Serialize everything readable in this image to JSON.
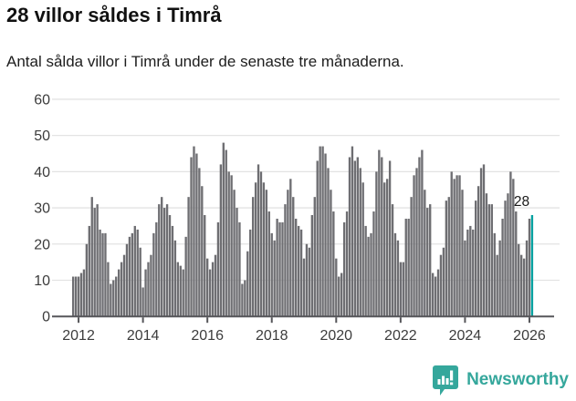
{
  "header": {
    "title": "28 villor såldes i Timrå",
    "subtitle": "Antal sålda villor i Timrå under de senaste tre månaderna."
  },
  "branding": {
    "name": "Newsworthy",
    "icon": "newsworthy-speech-bubble-chart-icon",
    "color": "#35a79c"
  },
  "chart_data": {
    "type": "bar",
    "title": "28 villor såldes i Timrå",
    "subtitle": "Antal sålda villor i Timrå under de senaste tre månaderna.",
    "x_start": "2011-11",
    "x_end": "2026-02",
    "x_tick_labels": [
      "2012",
      "2014",
      "2016",
      "2018",
      "2020",
      "2022",
      "2024",
      "2026"
    ],
    "y_ticks": [
      0,
      10,
      20,
      30,
      40,
      50,
      60
    ],
    "ylim": [
      0,
      60
    ],
    "grid": true,
    "legend": false,
    "bar_color": "#6e6e72",
    "highlight_color": "#00a1a0",
    "axis_text_color": "#3c3c3c",
    "grid_color": "#e3e3e3",
    "axis_line_color": "#56565a",
    "annotation_label": "28",
    "highlight_value": 28,
    "values": [
      11,
      11,
      11,
      12,
      13,
      20,
      25,
      33,
      30,
      31,
      24,
      23,
      23,
      15,
      9,
      10,
      11,
      13,
      15,
      17,
      20,
      22,
      23,
      25,
      24,
      19,
      8,
      13,
      15,
      17,
      23,
      26,
      31,
      33,
      30,
      31,
      28,
      25,
      21,
      15,
      14,
      13,
      22,
      33,
      44,
      47,
      45,
      41,
      36,
      28,
      16,
      13,
      15,
      17,
      26,
      42,
      48,
      46,
      40,
      39,
      35,
      30,
      26,
      9,
      10,
      18,
      24,
      33,
      37,
      42,
      40,
      37,
      35,
      29,
      23,
      21,
      27,
      26,
      26,
      31,
      35,
      38,
      33,
      27,
      25,
      24,
      16,
      20,
      19,
      28,
      33,
      43,
      47,
      47,
      45,
      41,
      35,
      29,
      16,
      11,
      12,
      26,
      29,
      44,
      47,
      43,
      44,
      41,
      37,
      25,
      22,
      23,
      29,
      40,
      46,
      44,
      37,
      38,
      43,
      31,
      23,
      21,
      15,
      15,
      27,
      27,
      33,
      39,
      41,
      44,
      46,
      35,
      30,
      31,
      12,
      11,
      13,
      17,
      19,
      32,
      33,
      40,
      38,
      39,
      39,
      35,
      21,
      24,
      25,
      24,
      32,
      36,
      41,
      42,
      34,
      31,
      31,
      23,
      17,
      21,
      27,
      32,
      34,
      40,
      38,
      29,
      20,
      17,
      16,
      21,
      27,
      28
    ]
  }
}
